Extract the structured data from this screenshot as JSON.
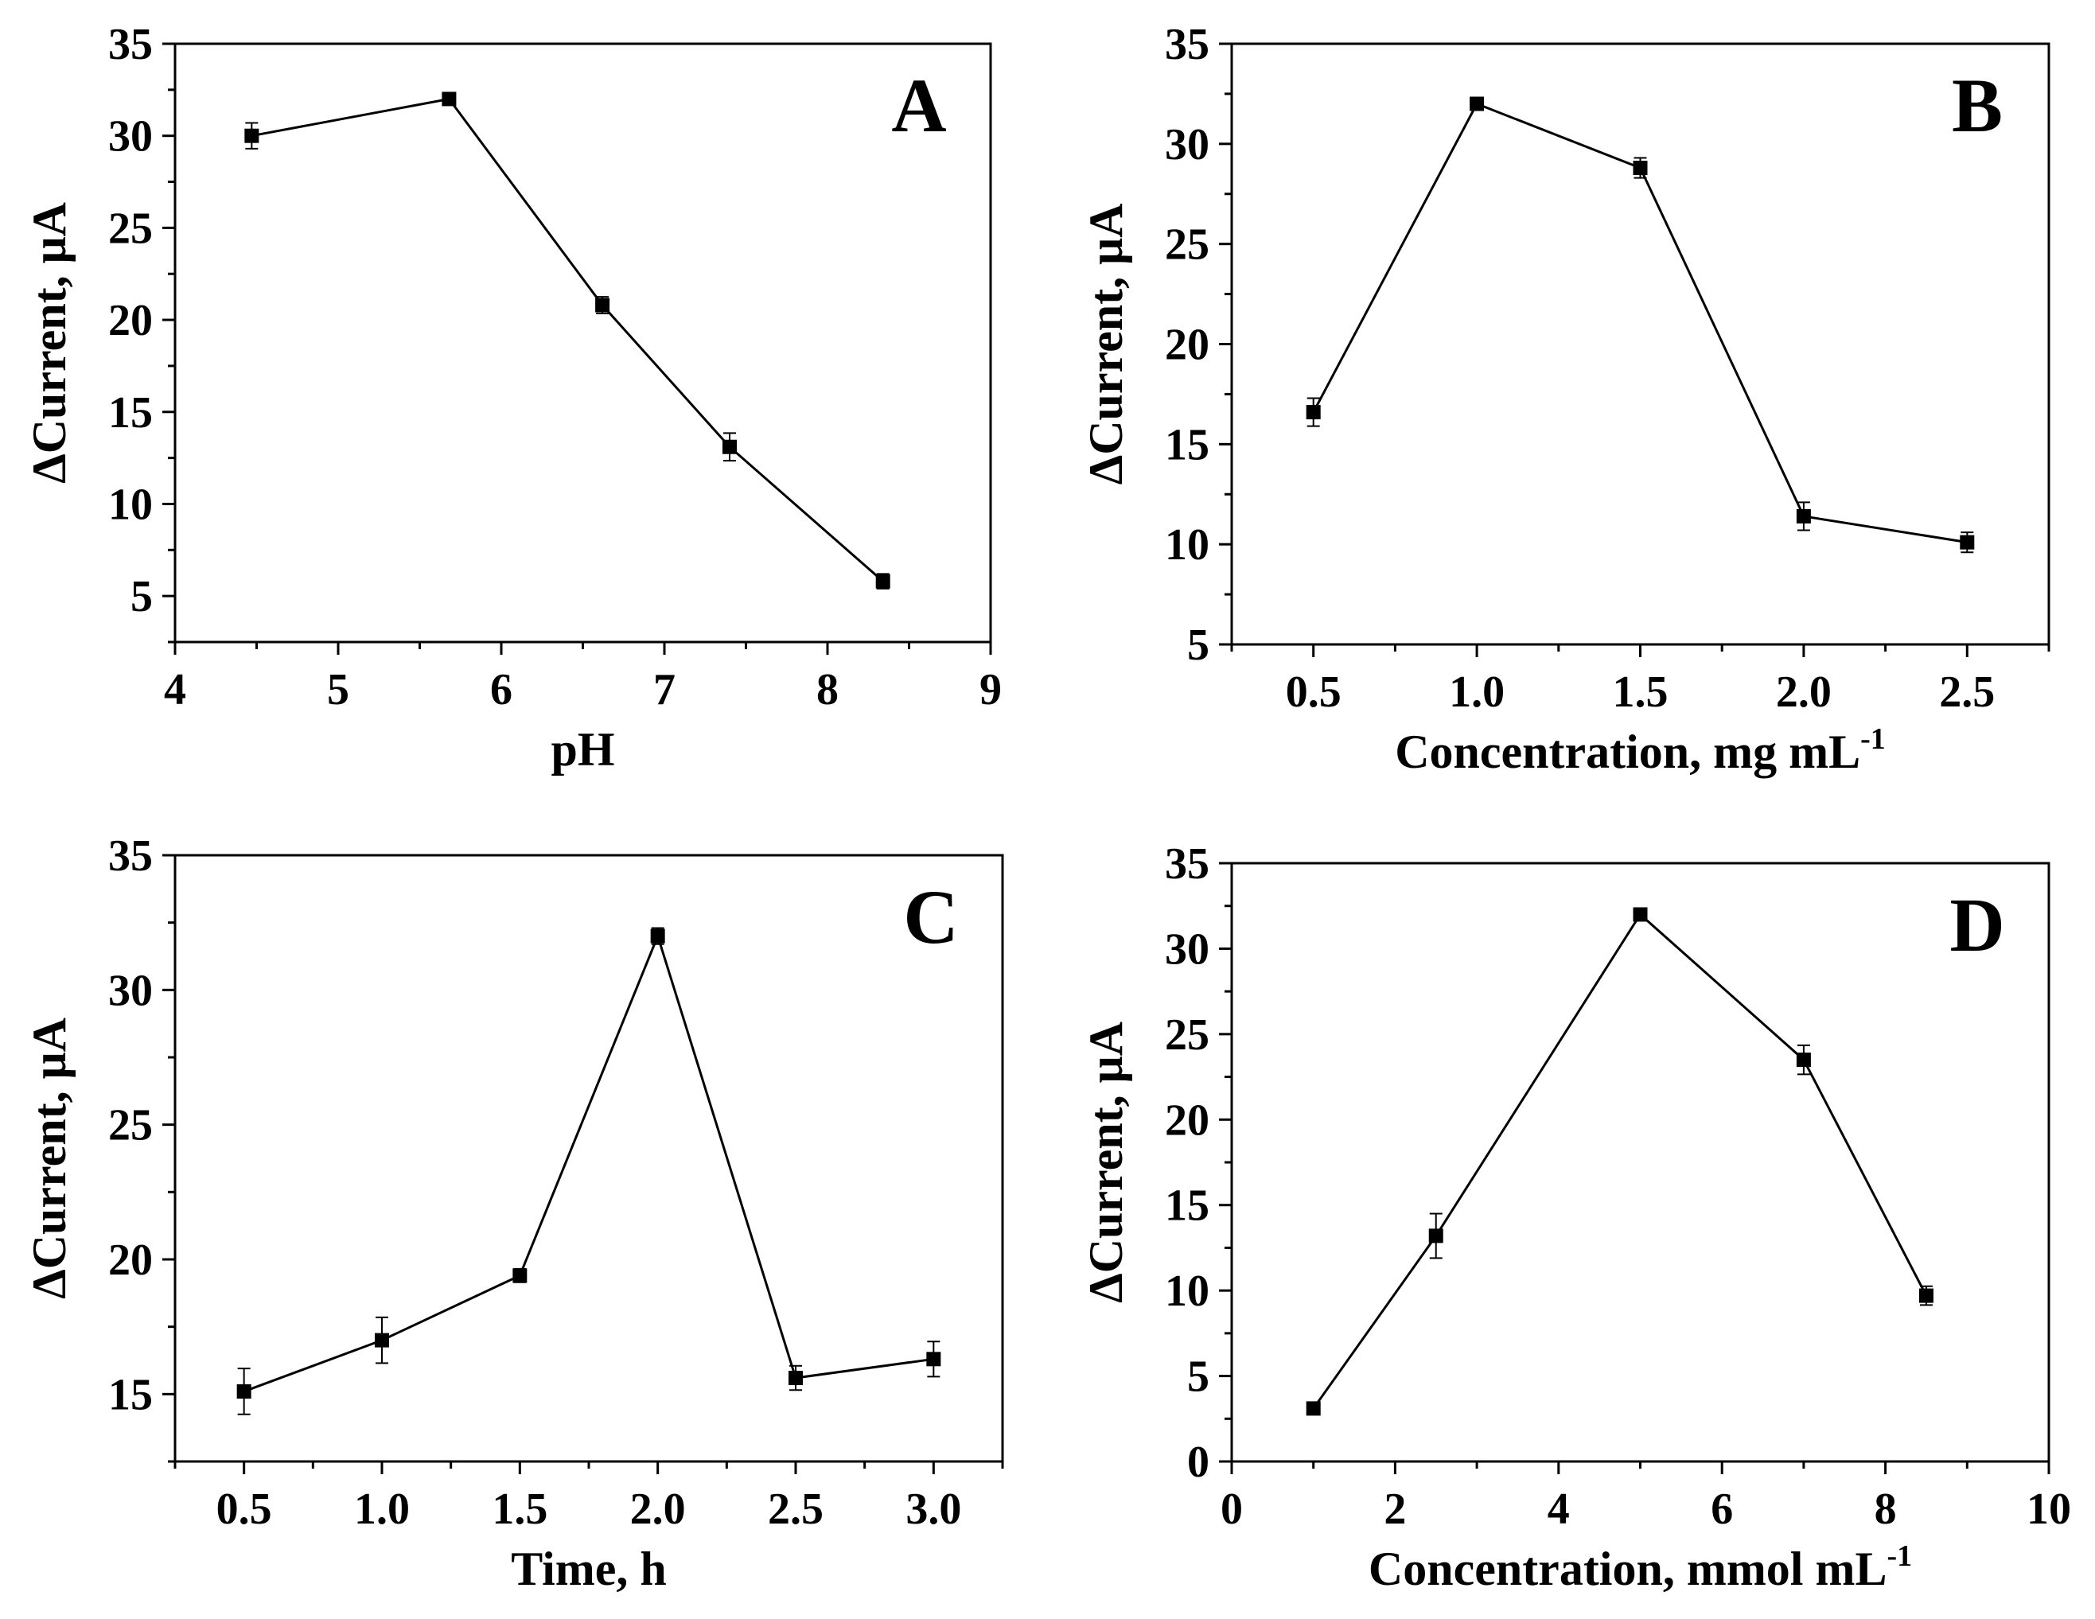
{
  "figure": {
    "background": "#ffffff",
    "ink": "#000000"
  },
  "chart_data": [
    {
      "type": "line",
      "panel_label": "A",
      "xlabel": "pH",
      "ylabel": "ΔCurrent, μA",
      "xlim": [
        4,
        9
      ],
      "ylim": [
        2.5,
        35
      ],
      "xticks": [
        "4",
        "5",
        "6",
        "7",
        "8",
        "9"
      ],
      "yticks": [
        "5",
        "10",
        "15",
        "20",
        "25",
        "30",
        "35"
      ],
      "x": [
        4.47,
        5.68,
        6.62,
        7.4,
        8.34
      ],
      "y": [
        30.0,
        32.0,
        20.8,
        13.1,
        5.8
      ],
      "yerr": [
        0.7,
        0.25,
        0.45,
        0.75,
        0.4
      ]
    },
    {
      "type": "line",
      "panel_label": "B",
      "xlabel": "Concentration, mg mL",
      "xlabel_sup": "-1",
      "ylabel": "ΔCurrent, μA",
      "xlim": [
        0.25,
        2.75
      ],
      "ylim": [
        5,
        35
      ],
      "xticks": [
        "0.5",
        "1.0",
        "1.5",
        "2.0",
        "2.5"
      ],
      "yticks": [
        "5",
        "10",
        "15",
        "20",
        "25",
        "30",
        "35"
      ],
      "x": [
        0.5,
        1.0,
        1.5,
        2.0,
        2.5
      ],
      "y": [
        16.6,
        32.0,
        28.8,
        11.4,
        10.1
      ],
      "yerr": [
        0.7,
        0.3,
        0.5,
        0.7,
        0.5
      ]
    },
    {
      "type": "line",
      "panel_label": "C",
      "xlabel": "Time, h",
      "ylabel": "ΔCurrent, μA",
      "xlim": [
        0.25,
        3.25
      ],
      "ylim": [
        12.5,
        35
      ],
      "xticks": [
        "0.5",
        "1.0",
        "1.5",
        "2.0",
        "2.5",
        "3.0"
      ],
      "yticks": [
        "15",
        "20",
        "25",
        "30",
        "35"
      ],
      "x": [
        0.5,
        1.0,
        1.5,
        2.0,
        2.5,
        3.0
      ],
      "y": [
        15.1,
        17.0,
        19.4,
        32.0,
        15.6,
        16.3
      ],
      "yerr": [
        0.85,
        0.85,
        0.25,
        0.3,
        0.45,
        0.65
      ]
    },
    {
      "type": "line",
      "panel_label": "D",
      "xlabel": "Concentration, mmol mL",
      "xlabel_sup": "-1",
      "ylabel": "ΔCurrent, μA",
      "xlim": [
        0,
        10
      ],
      "ylim": [
        0,
        35
      ],
      "xticks": [
        "0",
        "2",
        "4",
        "6",
        "8",
        "10"
      ],
      "yticks": [
        "0",
        "5",
        "10",
        "15",
        "20",
        "25",
        "30",
        "35"
      ],
      "x": [
        1.0,
        2.5,
        5.0,
        7.0,
        8.5
      ],
      "y": [
        3.1,
        13.2,
        32.0,
        23.5,
        9.7
      ],
      "yerr": [
        0.25,
        1.3,
        0.3,
        0.85,
        0.55
      ]
    }
  ]
}
